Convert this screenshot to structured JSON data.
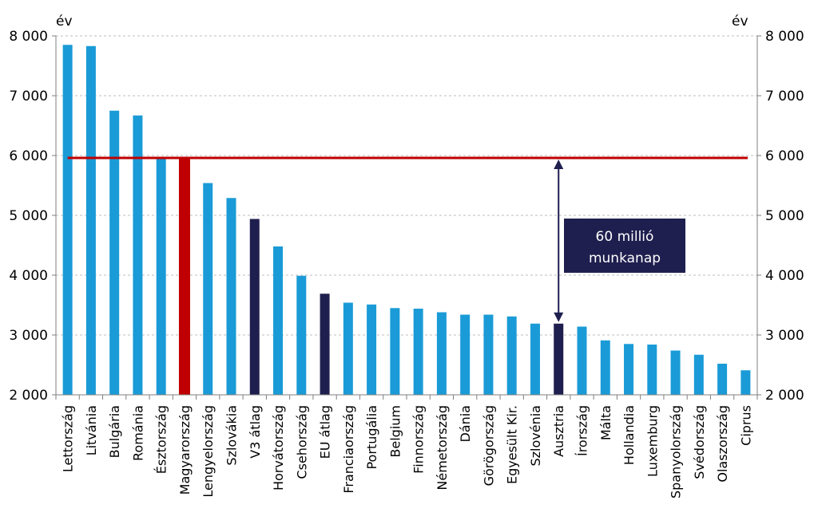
{
  "chart_data": {
    "type": "bar",
    "categories": [
      "Lettország",
      "Litvánia",
      "Bulgária",
      "Románia",
      "Észtország",
      "Magyarország",
      "Lengyelország",
      "Szlovákia",
      "V3 átlag",
      "Horvátország",
      "Csehország",
      "EU átlag",
      "Franciaország",
      "Portugália",
      "Belgium",
      "Finnország",
      "Németország",
      "Dánia",
      "Görögország",
      "Egyesült Kir.",
      "Szlovénia",
      "Ausztria",
      "Írország",
      "Málta",
      "Hollandia",
      "Luxemburg",
      "Spanyolország",
      "Svédország",
      "Olaszország",
      "Ciprus"
    ],
    "values": [
      7850,
      7830,
      6750,
      6670,
      5950,
      5960,
      5540,
      5290,
      4940,
      4480,
      3990,
      3690,
      3540,
      3510,
      3450,
      3440,
      3380,
      3340,
      3340,
      3310,
      3190,
      3190,
      3140,
      2910,
      2850,
      2840,
      2740,
      2670,
      2520,
      2410
    ],
    "highlight": {
      "Magyarország": "#c00000",
      "V3 átlag": "#1f1f4f",
      "EU átlag": "#1f1f4f",
      "Ausztria": "#1f1f4f"
    },
    "bar_color": "#1a9bd7",
    "ylim": [
      2000,
      8000
    ],
    "yticks": [
      2000,
      3000,
      4000,
      5000,
      6000,
      7000,
      8000
    ],
    "ytick_labels": [
      "2 000",
      "3 000",
      "4 000",
      "5 000",
      "6 000",
      "7 000",
      "8 000"
    ],
    "y_unit_left": "év",
    "y_unit_right": "év",
    "grid": true,
    "reference_line": {
      "value": 5960,
      "color": "#c00000"
    },
    "annotation": {
      "text_lines": [
        "60 millió",
        "munkanap"
      ],
      "from_value": 5960,
      "to_value": 3190,
      "at_category": "Ausztria",
      "box_color": "#1f1f4f"
    }
  }
}
